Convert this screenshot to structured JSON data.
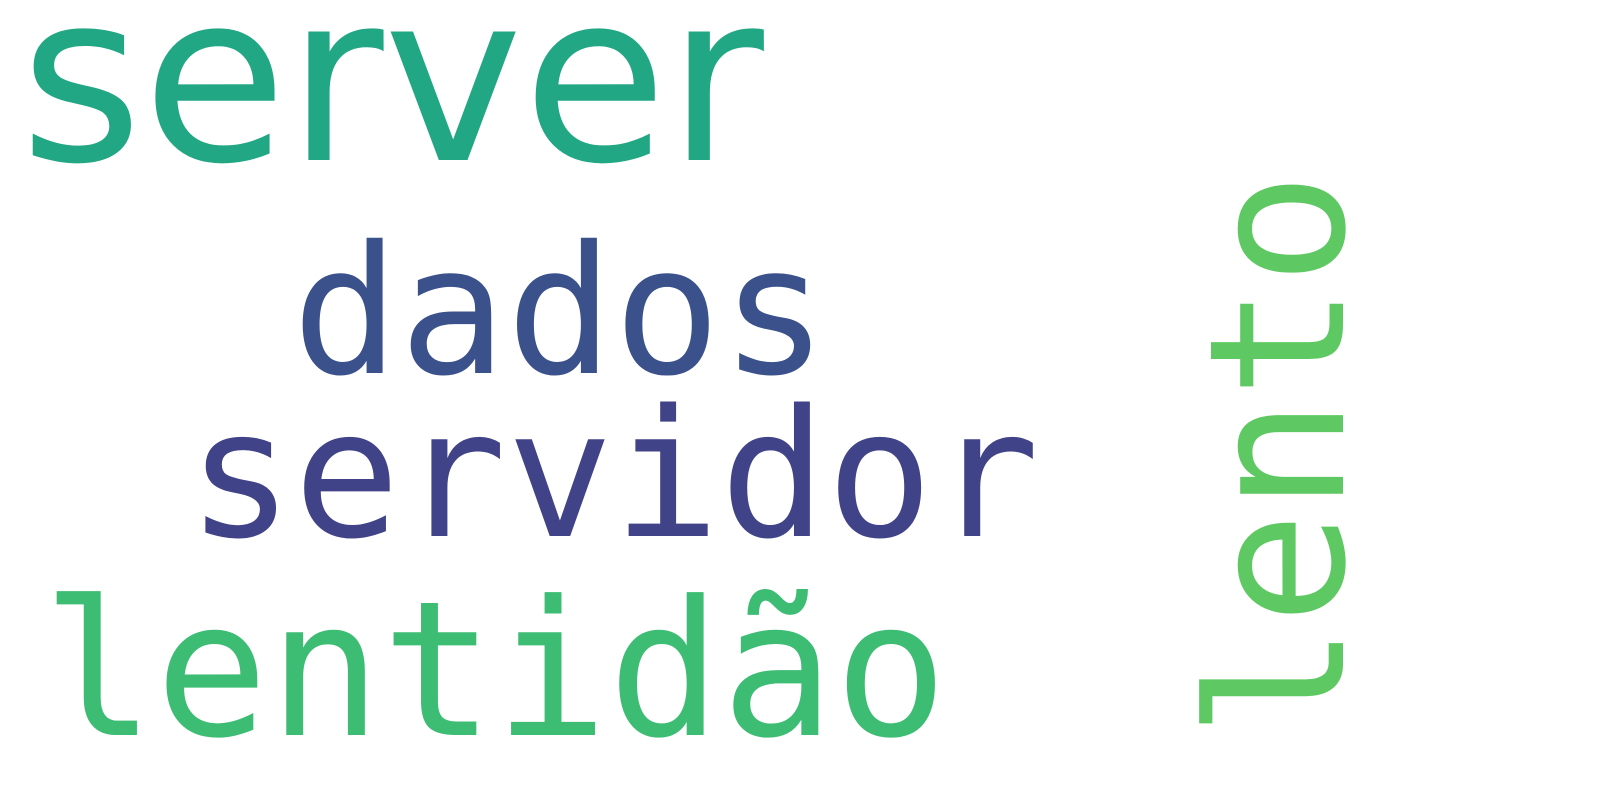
{
  "word_cloud": {
    "background": "#ffffff",
    "words": [
      {
        "text": "server",
        "color": "#22a785",
        "orientation": "horizontal"
      },
      {
        "text": "dados",
        "color": "#3b518b",
        "orientation": "horizontal"
      },
      {
        "text": "servidor",
        "color": "#404387",
        "orientation": "horizontal"
      },
      {
        "text": "lentidão",
        "color": "#3dbc74",
        "orientation": "horizontal"
      },
      {
        "text": "lento",
        "color": "#5ec962",
        "orientation": "vertical"
      }
    ]
  }
}
